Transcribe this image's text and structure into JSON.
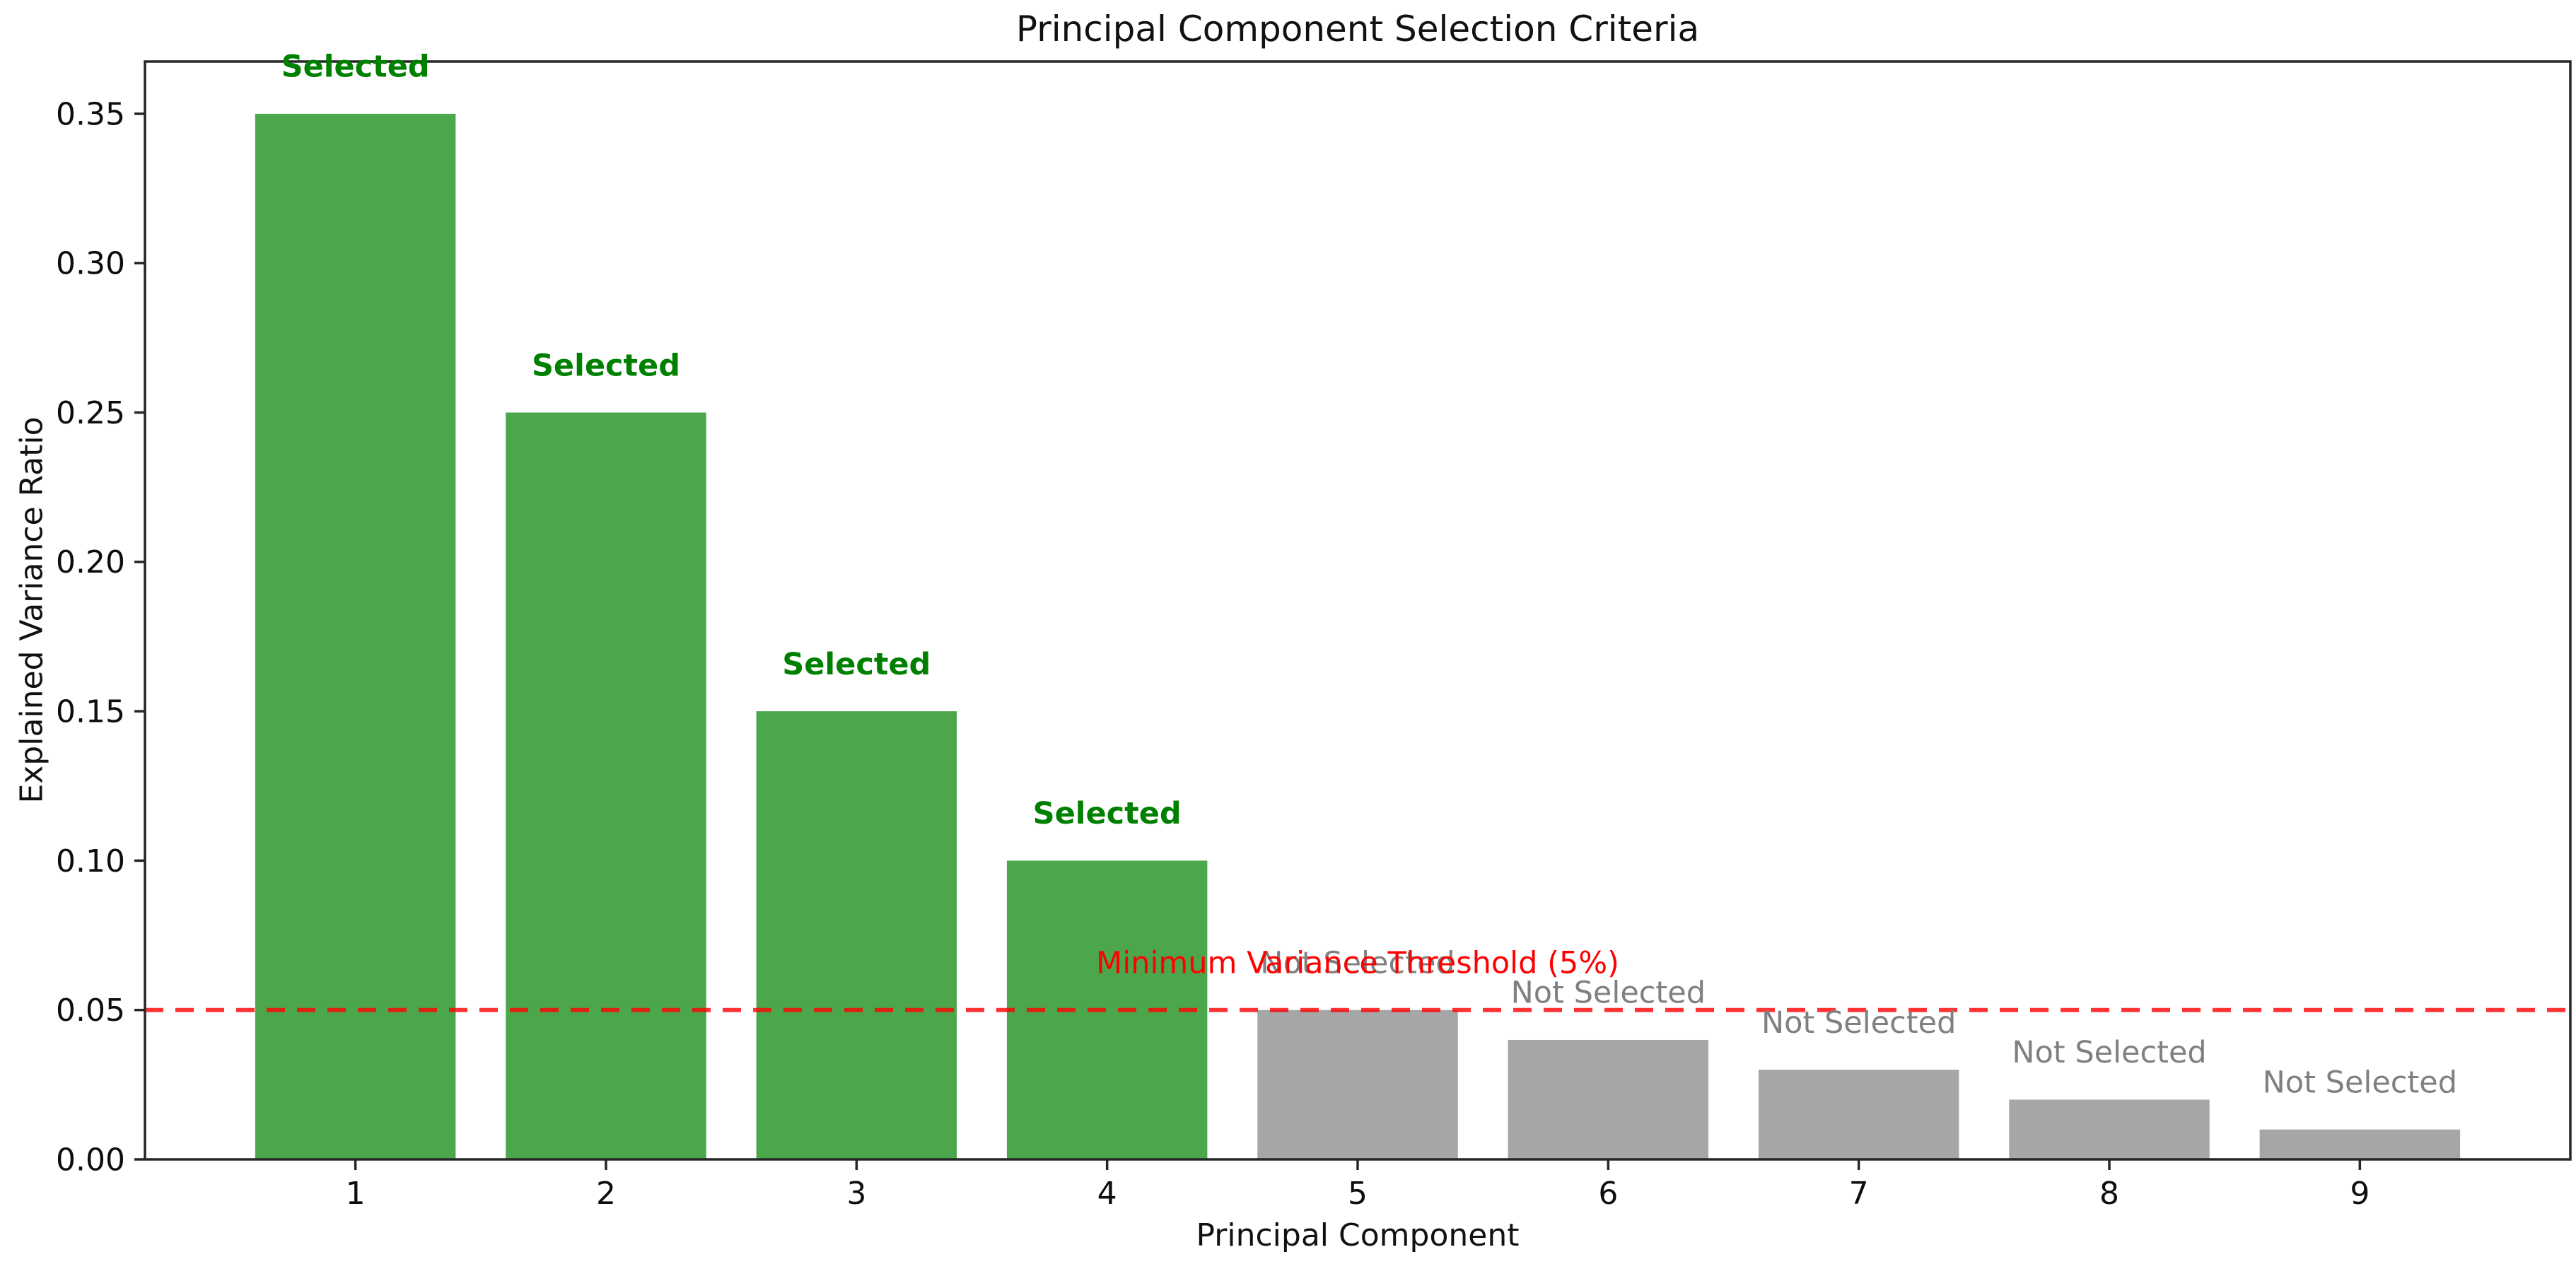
{
  "figure": {
    "background": "#ffffff"
  },
  "chart_data": {
    "type": "bar",
    "title": "Principal Component Selection Criteria",
    "xlabel": "Principal Component",
    "ylabel": "Explained Variance Ratio",
    "categories": [
      "1",
      "2",
      "3",
      "4",
      "5",
      "6",
      "7",
      "8",
      "9"
    ],
    "values": [
      0.35,
      0.25,
      0.15,
      0.1,
      0.05,
      0.04,
      0.03,
      0.02,
      0.01
    ],
    "selected": [
      true,
      true,
      true,
      true,
      false,
      false,
      false,
      false,
      false
    ],
    "bar_labels": [
      "Selected",
      "Selected",
      "Selected",
      "Selected",
      "Not Selected",
      "Not Selected",
      "Not Selected",
      "Not Selected",
      "Not Selected"
    ],
    "bar_label_offset": 0.01,
    "bar_width": 0.8,
    "ytick_values": [
      0.0,
      0.05,
      0.1,
      0.15,
      0.2,
      0.25,
      0.3,
      0.35
    ],
    "ytick_labels": [
      "0.00",
      "0.05",
      "0.10",
      "0.15",
      "0.20",
      "0.25",
      "0.30",
      "0.35"
    ],
    "xlim": [
      0.16,
      9.84
    ],
    "ylim": [
      0,
      0.3675
    ],
    "grid": false,
    "legend": null,
    "threshold": {
      "value": 0.05,
      "label": "Minimum Variance Threshold (5%)",
      "label_y": 0.06
    },
    "colors": {
      "selected_bar": "#4ca64c",
      "not_selected_bar": "#a6a6a6",
      "selected_label": "#008000",
      "not_selected_label": "#808080",
      "threshold_line": "#ff0000",
      "threshold_label": "#ff0000",
      "axis": "#262626",
      "text": "#0d0d0d"
    }
  }
}
